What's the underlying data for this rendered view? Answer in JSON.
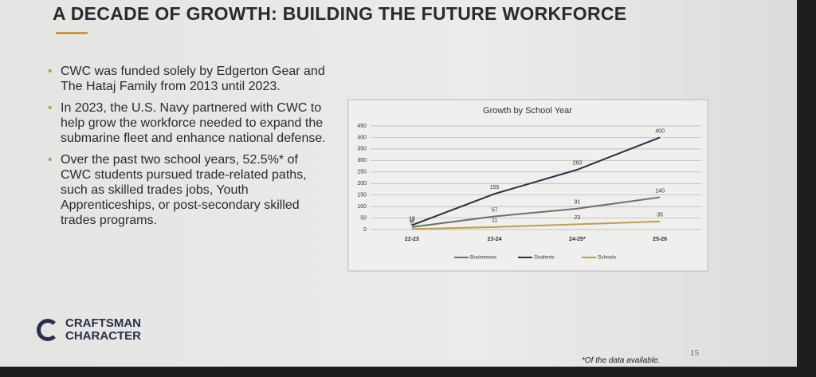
{
  "title": "A DECADE OF GROWTH: BUILDING THE FUTURE WORKFORCE",
  "bullets": [
    "CWC was funded solely by Edgerton Gear and The Hataj Family from 2013 until 2023.",
    "In 2023, the U.S. Navy partnered with CWC to help grow the workforce needed to expand the submarine fleet and enhance national defense.",
    "Over the past two school years, 52.5%* of CWC students pursued trade-related paths, such as skilled trades jobs, Youth Apprenticeships, or post-secondary skilled trades programs."
  ],
  "logo": {
    "line1": "CRAFTSMAN",
    "line2": "CHARACTER"
  },
  "footnote": "*Of the data available.",
  "page_number": "15",
  "chart_data": {
    "type": "line",
    "title": "Growth by School Year",
    "categories": [
      "22-23",
      "23-24",
      "24-25*",
      "25-26"
    ],
    "series": [
      {
        "name": "Businesses",
        "color": "#6e6e72",
        "values": [
          11,
          57,
          91,
          140
        ]
      },
      {
        "name": "Students",
        "color": "#2a2f4a",
        "values": [
          19,
          155,
          260,
          400
        ]
      },
      {
        "name": "Schools",
        "color": "#c39a4e",
        "values": [
          2,
          11,
          23,
          35
        ]
      }
    ],
    "ylim": [
      0,
      450
    ],
    "yticks": [
      0,
      50,
      100,
      150,
      200,
      250,
      300,
      350,
      400,
      450
    ],
    "grid": true
  }
}
